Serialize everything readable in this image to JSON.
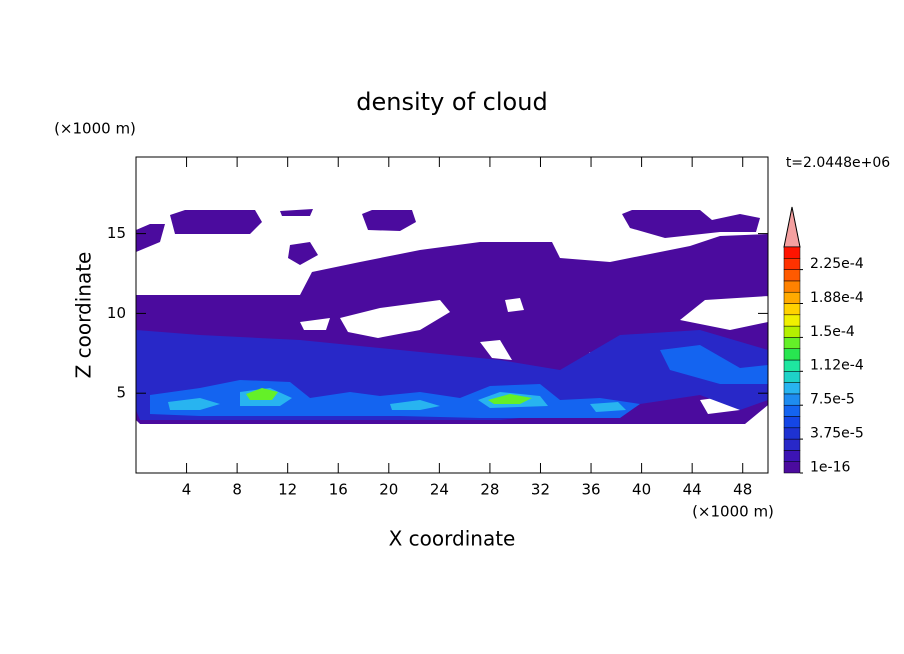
{
  "chart_data": {
    "type": "contour",
    "title": "density of cloud",
    "x_label": "X coordinate",
    "y_label": "Z coordinate",
    "x_unit": "(×1000 m)",
    "y_unit": "(×1000 m)",
    "annotation": "t=2.0448e+06",
    "xlim": [
      0,
      50
    ],
    "ylim": [
      0,
      19.8
    ],
    "xticks": [
      4,
      8,
      12,
      16,
      20,
      24,
      28,
      32,
      36,
      40,
      44,
      48
    ],
    "yticks": [
      5,
      10,
      15
    ],
    "colorbar": {
      "lim": [
        0,
        0.00025
      ],
      "colors": [
        "#4b0b9e",
        "#3c14b4",
        "#2828c8",
        "#1e32d2",
        "#1446e6",
        "#1464f0",
        "#1e8cf0",
        "#28b4f0",
        "#1ed2c8",
        "#1ee6a0",
        "#28e650",
        "#64f028",
        "#b4f000",
        "#f0f000",
        "#ffd200",
        "#ffaa00",
        "#ff8200",
        "#ff5a00",
        "#ff3200",
        "#ff1400"
      ],
      "over_color": "#f4a0a0",
      "ticks": [
        {
          "value": 1e-16,
          "label": "1e-16"
        },
        {
          "value": 3.75e-05,
          "label": "3.75e-5"
        },
        {
          "value": 7.5e-05,
          "label": "7.5e-5"
        },
        {
          "value": 0.0001125,
          "label": "1.12e-4"
        },
        {
          "value": 0.00015,
          "label": "1.5e-4"
        },
        {
          "value": 0.0001875,
          "label": "1.88e-4"
        },
        {
          "value": 0.000225,
          "label": "2.25e-4"
        }
      ]
    }
  }
}
